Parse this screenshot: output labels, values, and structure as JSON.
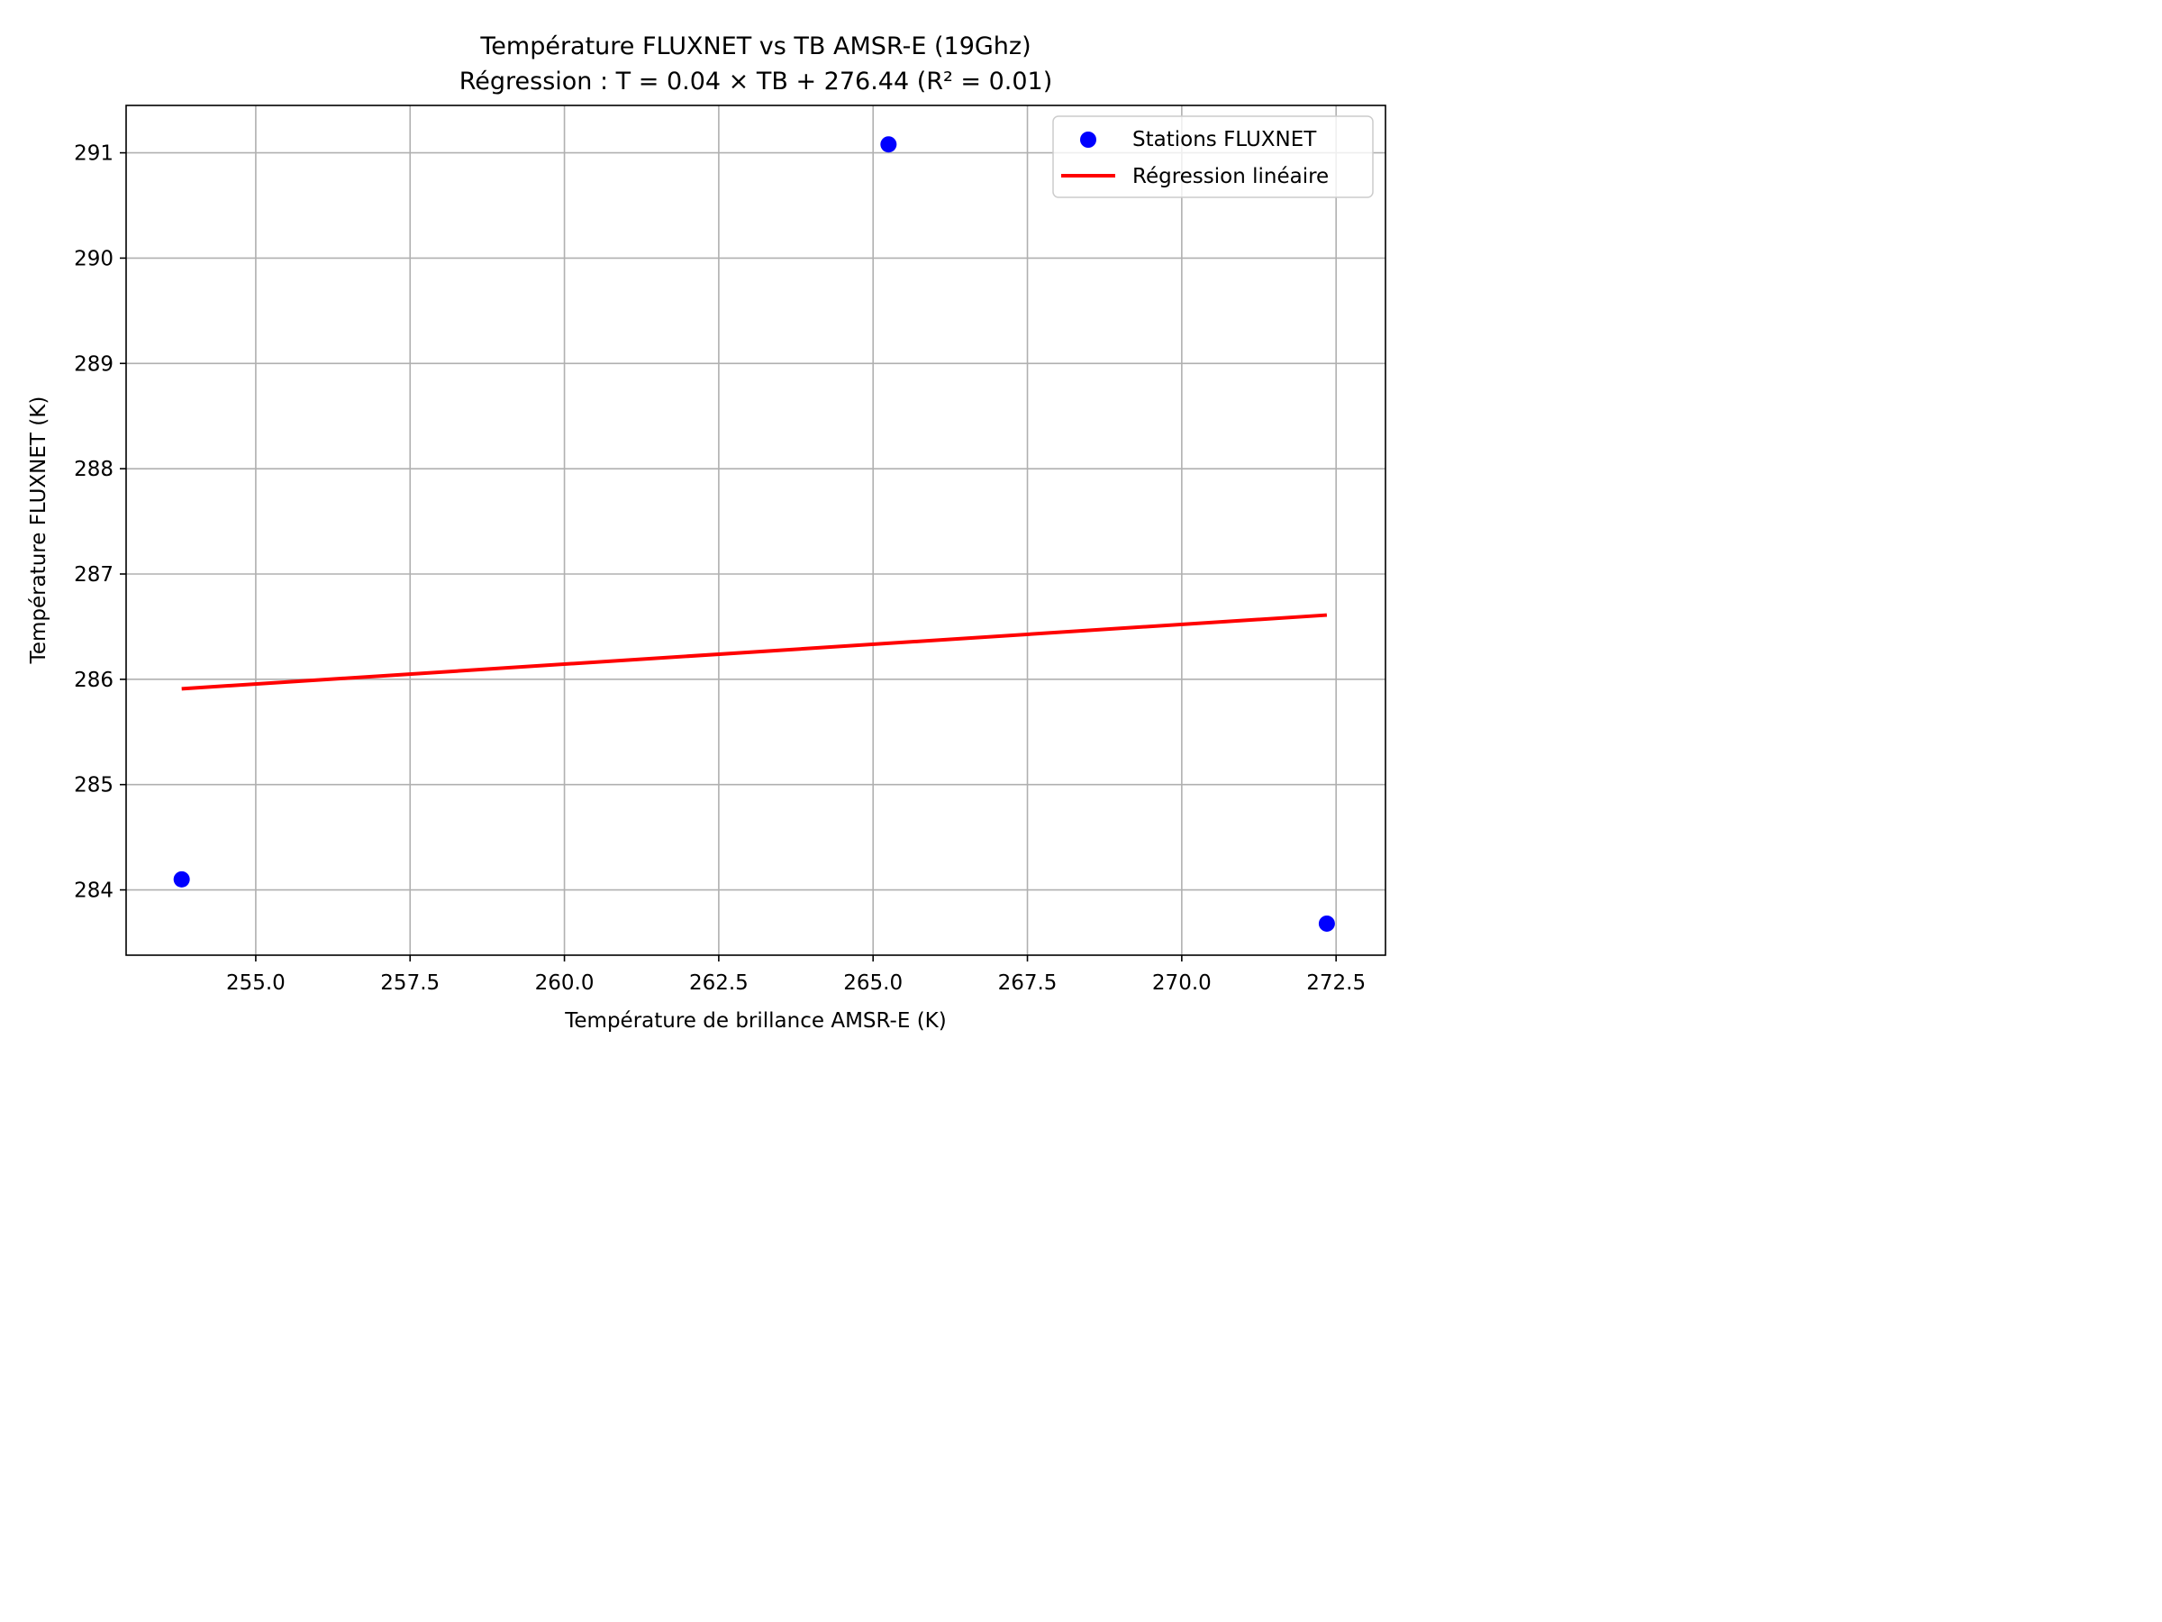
{
  "chart_data": {
    "type": "scatter",
    "title": "Température FLUXNET vs TB AMSR-E (19Ghz)",
    "subtitle": "Régression : T = 0.04 × TB + 276.44 (R² = 0.01)",
    "xlabel": "Température de brillance AMSR-E (K)",
    "ylabel": "Température FLUXNET (K)",
    "xlim": [
      252.9,
      273.3
    ],
    "ylim": [
      283.38,
      291.45
    ],
    "xticks": [
      255.0,
      257.5,
      260.0,
      262.5,
      265.0,
      267.5,
      270.0,
      272.5
    ],
    "xtick_labels": [
      "255.0",
      "257.5",
      "260.0",
      "262.5",
      "265.0",
      "267.5",
      "270.0",
      "272.5"
    ],
    "yticks": [
      284,
      285,
      286,
      287,
      288,
      289,
      290,
      291
    ],
    "ytick_labels": [
      "284",
      "285",
      "286",
      "287",
      "288",
      "289",
      "290",
      "291"
    ],
    "grid": true,
    "legend_position": "top-right",
    "series": [
      {
        "name": "Stations FLUXNET",
        "kind": "scatter",
        "color": "#0000ff",
        "points": [
          {
            "x": 253.8,
            "y": 284.1
          },
          {
            "x": 265.25,
            "y": 291.08
          },
          {
            "x": 272.35,
            "y": 283.68
          }
        ]
      },
      {
        "name": "Régression linéaire",
        "kind": "line",
        "color": "#ff0000",
        "points": [
          {
            "x": 253.8,
            "y": 285.91
          },
          {
            "x": 272.35,
            "y": 286.61
          }
        ]
      }
    ]
  }
}
